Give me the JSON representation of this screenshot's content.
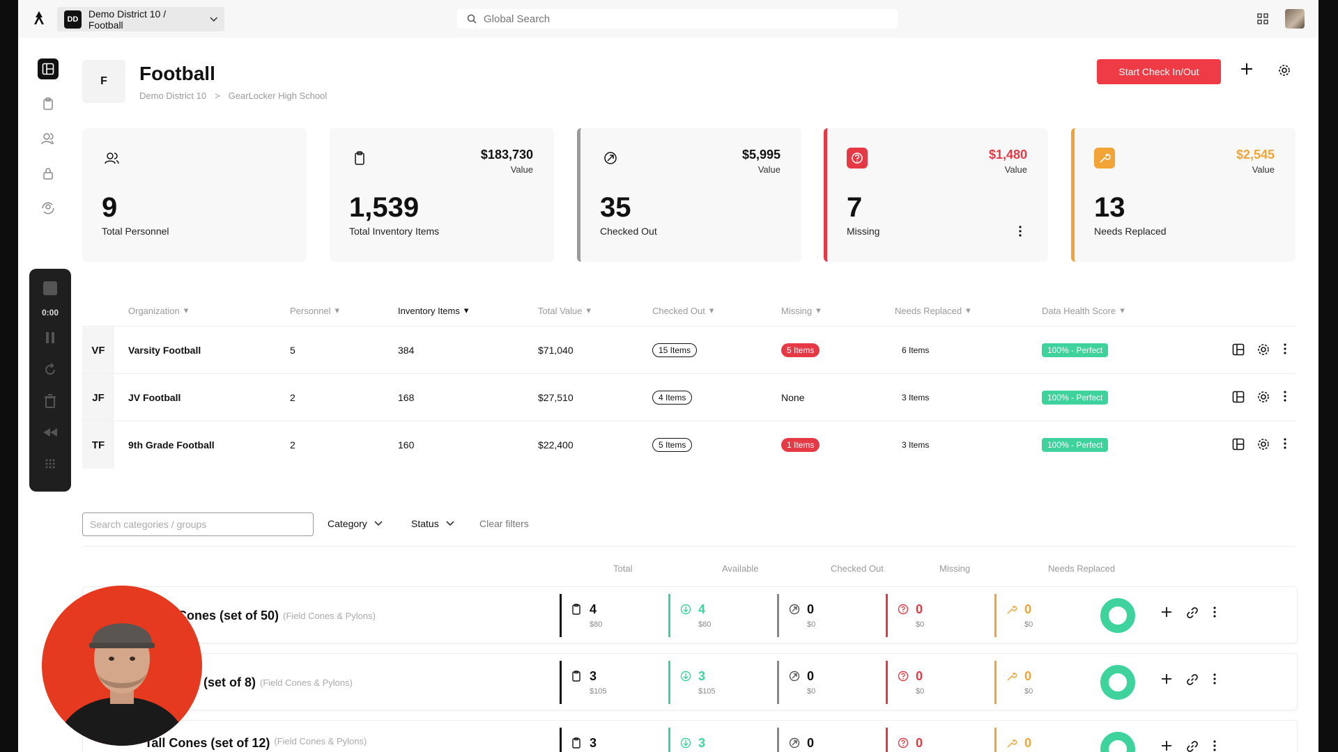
{
  "topbar": {
    "district_badge": "DD",
    "district_label": "Demo District 10 / Football",
    "search_placeholder": "Global Search"
  },
  "recorder": {
    "time": "0:00"
  },
  "header": {
    "avatar_initial": "F",
    "title": "Football",
    "breadcrumb": [
      "Demo District 10",
      ">",
      "GearLocker High School"
    ],
    "start_button": "Start Check In/Out"
  },
  "stats": [
    {
      "icon": "people-icon",
      "number": "9",
      "label": "Total Personnel"
    },
    {
      "icon": "inventory-icon",
      "value": "$183,730",
      "value_label": "Value",
      "number": "1,539",
      "label": "Total Inventory Items"
    },
    {
      "icon": "checked-out-icon",
      "value": "$5,995",
      "value_label": "Value",
      "number": "35",
      "label": "Checked Out",
      "accent": "#9a9a9a"
    },
    {
      "icon": "question-icon",
      "value": "$1,480",
      "value_label": "Value",
      "number": "7",
      "label": "Missing",
      "accent": "#e53945"
    },
    {
      "icon": "wrench-icon",
      "value": "$2,545",
      "value_label": "Value",
      "number": "13",
      "label": "Needs Replaced",
      "accent": "#f2a437"
    }
  ],
  "org_table": {
    "headers": [
      "Organization",
      "Personnel",
      "Inventory Items",
      "Total Value",
      "Checked Out",
      "Missing",
      "Needs Replaced",
      "Data Health Score"
    ],
    "rows": [
      {
        "initials": "VF",
        "name": "Varsity Football",
        "personnel": "5",
        "inventory": "384",
        "value": "$71,040",
        "checked_out": "15 Items",
        "missing": "5 Items",
        "needs_replaced": "6 Items",
        "health": "100% - Perfect"
      },
      {
        "initials": "JF",
        "name": "JV Football",
        "personnel": "2",
        "inventory": "168",
        "value": "$27,510",
        "checked_out": "4 Items",
        "missing": "None",
        "needs_replaced": "3 Items",
        "health": "100% - Perfect"
      },
      {
        "initials": "TF",
        "name": "9th Grade Football",
        "personnel": "2",
        "inventory": "160",
        "value": "$22,400",
        "checked_out": "5 Items",
        "missing": "1 Items",
        "needs_replaced": "3 Items",
        "health": "100% - Perfect"
      }
    ]
  },
  "filters": {
    "search_placeholder": "Search categories / groups",
    "category": "Category",
    "status": "Status",
    "clear": "Clear filters"
  },
  "items_table": {
    "headers": [
      "Total",
      "Available",
      "Checked Out",
      "Missing",
      "Needs Replaced"
    ],
    "rows": [
      {
        "name": "Cones (set of 50)",
        "category": "(Field Cones & Pylons)",
        "total": "4",
        "total_sub": "$80",
        "available": "4",
        "available_sub": "$80",
        "checked_out": "0",
        "checked_out_sub": "$0",
        "missing": "0",
        "missing_sub": "$0",
        "needs_replaced": "0",
        "needs_replaced_sub": "$0"
      },
      {
        "name": "ons (set of 8)",
        "category": "(Field Cones & Pylons)",
        "total": "3",
        "total_sub": "$105",
        "available": "3",
        "available_sub": "$105",
        "checked_out": "0",
        "checked_out_sub": "$0",
        "missing": "0",
        "missing_sub": "$0",
        "needs_replaced": "0",
        "needs_replaced_sub": "$0"
      },
      {
        "name": "Tall Cones (set of 12)",
        "category": "(Field Cones & Pylons)",
        "total": "3",
        "total_sub": "",
        "available": "3",
        "available_sub": "",
        "checked_out": "0",
        "checked_out_sub": "",
        "missing": "0",
        "missing_sub": "",
        "needs_replaced": "0",
        "needs_replaced_sub": ""
      }
    ]
  },
  "colors": {
    "accent_red": "#ef3b45",
    "green": "#3ed39d",
    "orange": "#f2a437"
  }
}
